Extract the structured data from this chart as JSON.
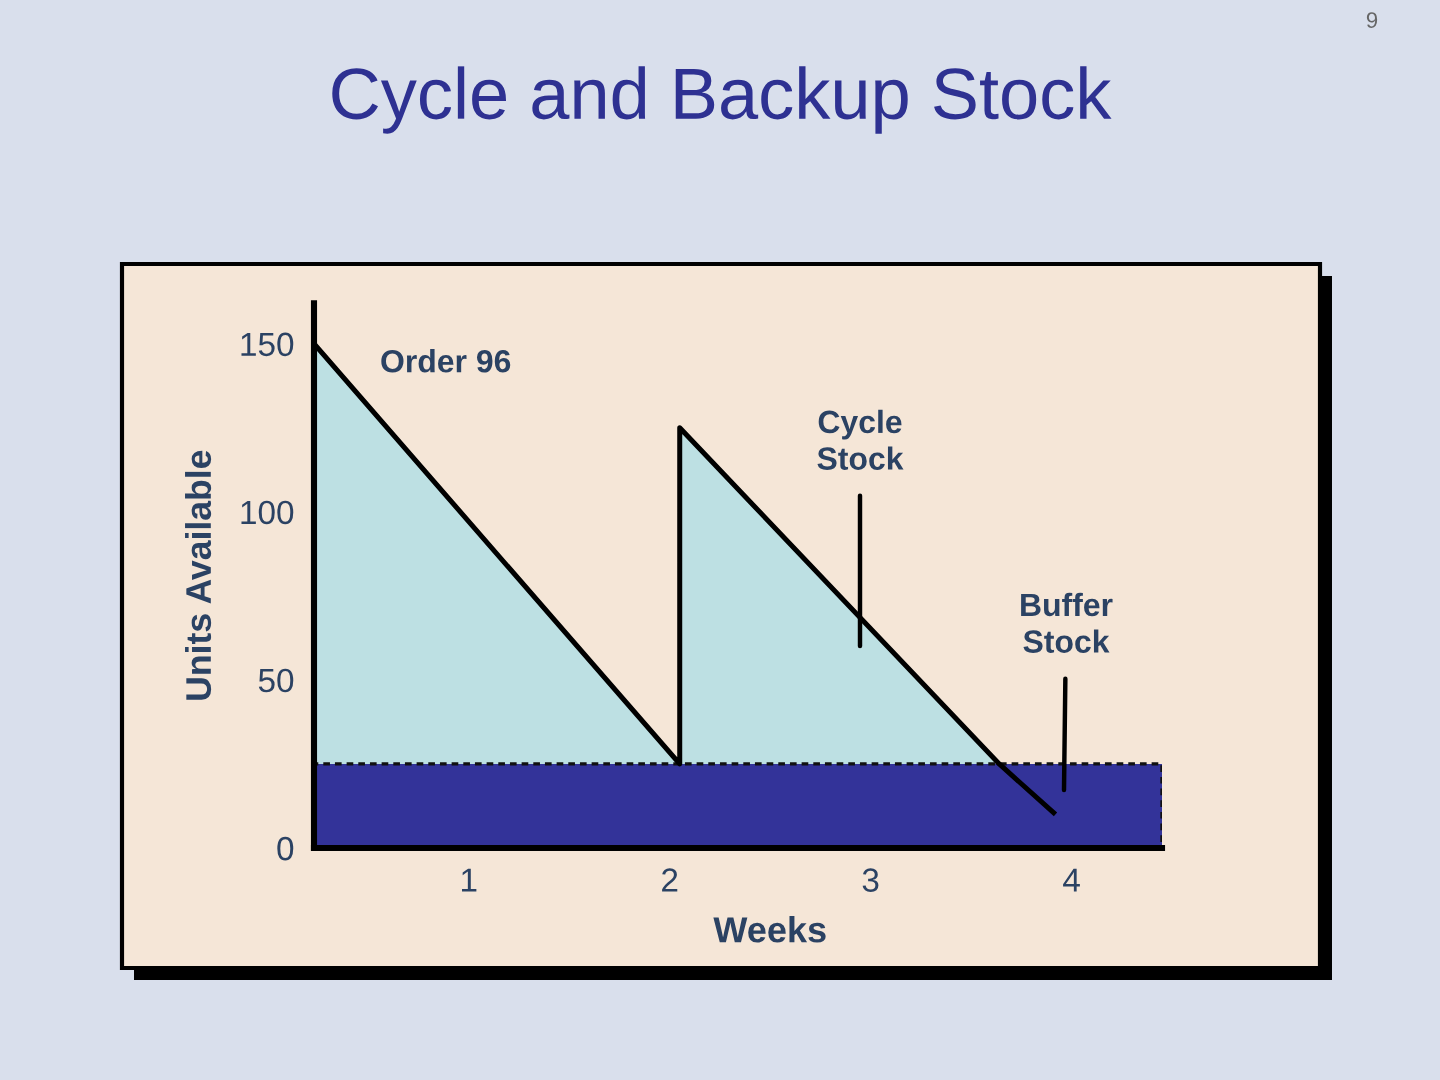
{
  "chart_data": {
    "type": "area",
    "title": "Cycle and Backup Stock",
    "xlabel": "Weeks",
    "ylabel": "Units Available",
    "xlim": [
      0.23,
      4.45
    ],
    "xticks": [
      1,
      2,
      3,
      4
    ],
    "ylim": [
      0,
      162
    ],
    "yticks": [
      0,
      50,
      100,
      150
    ],
    "series": [
      {
        "color": "#bde0e3",
        "x": [
          0.23,
          2.05,
          2.05,
          3.64
        ],
        "values": [
          150,
          25,
          125,
          25
        ]
      },
      {
        "color": "#333399",
        "x": [
          0.23,
          4.45
        ],
        "values": [
          25,
          25
        ]
      },
      {
        "type": "line",
        "color": "#000000",
        "x": [
          0.23,
          2.05,
          2.05,
          3.64,
          3.92
        ],
        "values": [
          150,
          25,
          125,
          25,
          10
        ]
      }
    ],
    "annotations": [
      "Order 96",
      "Cycle\nStock",
      "Buffer\nStock",
      "9"
    ]
  }
}
